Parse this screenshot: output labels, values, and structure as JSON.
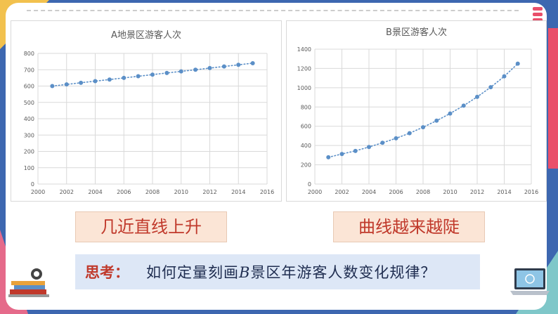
{
  "colors": {
    "accent": "#5b8fc7",
    "label_text": "#c0392b",
    "label_bg": "#fbe5d6",
    "think_bg": "#dde7f6"
  },
  "chart_data": [
    {
      "type": "scatter",
      "title": "A地景区游客人次",
      "x": [
        2001,
        2002,
        2003,
        2004,
        2005,
        2006,
        2007,
        2008,
        2009,
        2010,
        2011,
        2012,
        2013,
        2014,
        2015
      ],
      "values": [
        600,
        610,
        620,
        630,
        640,
        650,
        660,
        670,
        680,
        690,
        700,
        710,
        720,
        730,
        740
      ],
      "xlim": [
        2000,
        2016
      ],
      "ylim": [
        0,
        800
      ],
      "xticks": [
        2000,
        2002,
        2004,
        2006,
        2008,
        2010,
        2012,
        2014,
        2016
      ],
      "yticks": [
        0,
        100,
        200,
        300,
        400,
        500,
        600,
        700,
        800
      ],
      "trendline": "dotted",
      "grid": true
    },
    {
      "type": "scatter",
      "title": "B景区游客人次",
      "x": [
        2001,
        2002,
        2003,
        2004,
        2005,
        2006,
        2007,
        2008,
        2009,
        2010,
        2011,
        2012,
        2013,
        2014,
        2015
      ],
      "values": [
        278,
        312,
        344,
        385,
        428,
        475,
        528,
        590,
        658,
        732,
        814,
        905,
        1005,
        1118,
        1250
      ],
      "xlim": [
        2000,
        2016
      ],
      "ylim": [
        0,
        1400
      ],
      "xticks": [
        2000,
        2002,
        2004,
        2006,
        2008,
        2010,
        2012,
        2014,
        2016
      ],
      "yticks": [
        0,
        200,
        400,
        600,
        800,
        1000,
        1200,
        1400
      ],
      "trendline": "dotted",
      "grid": true
    }
  ],
  "labels": {
    "a": "几近直线上升",
    "b": "曲线越来越陡"
  },
  "think": {
    "keyword": "思考：",
    "q_pre": "如何定量刻画",
    "q_var": "B",
    "q_post": "景区年游客人数变化规律？"
  },
  "icons": {
    "left": "books-icon",
    "right": "laptop-icon"
  }
}
